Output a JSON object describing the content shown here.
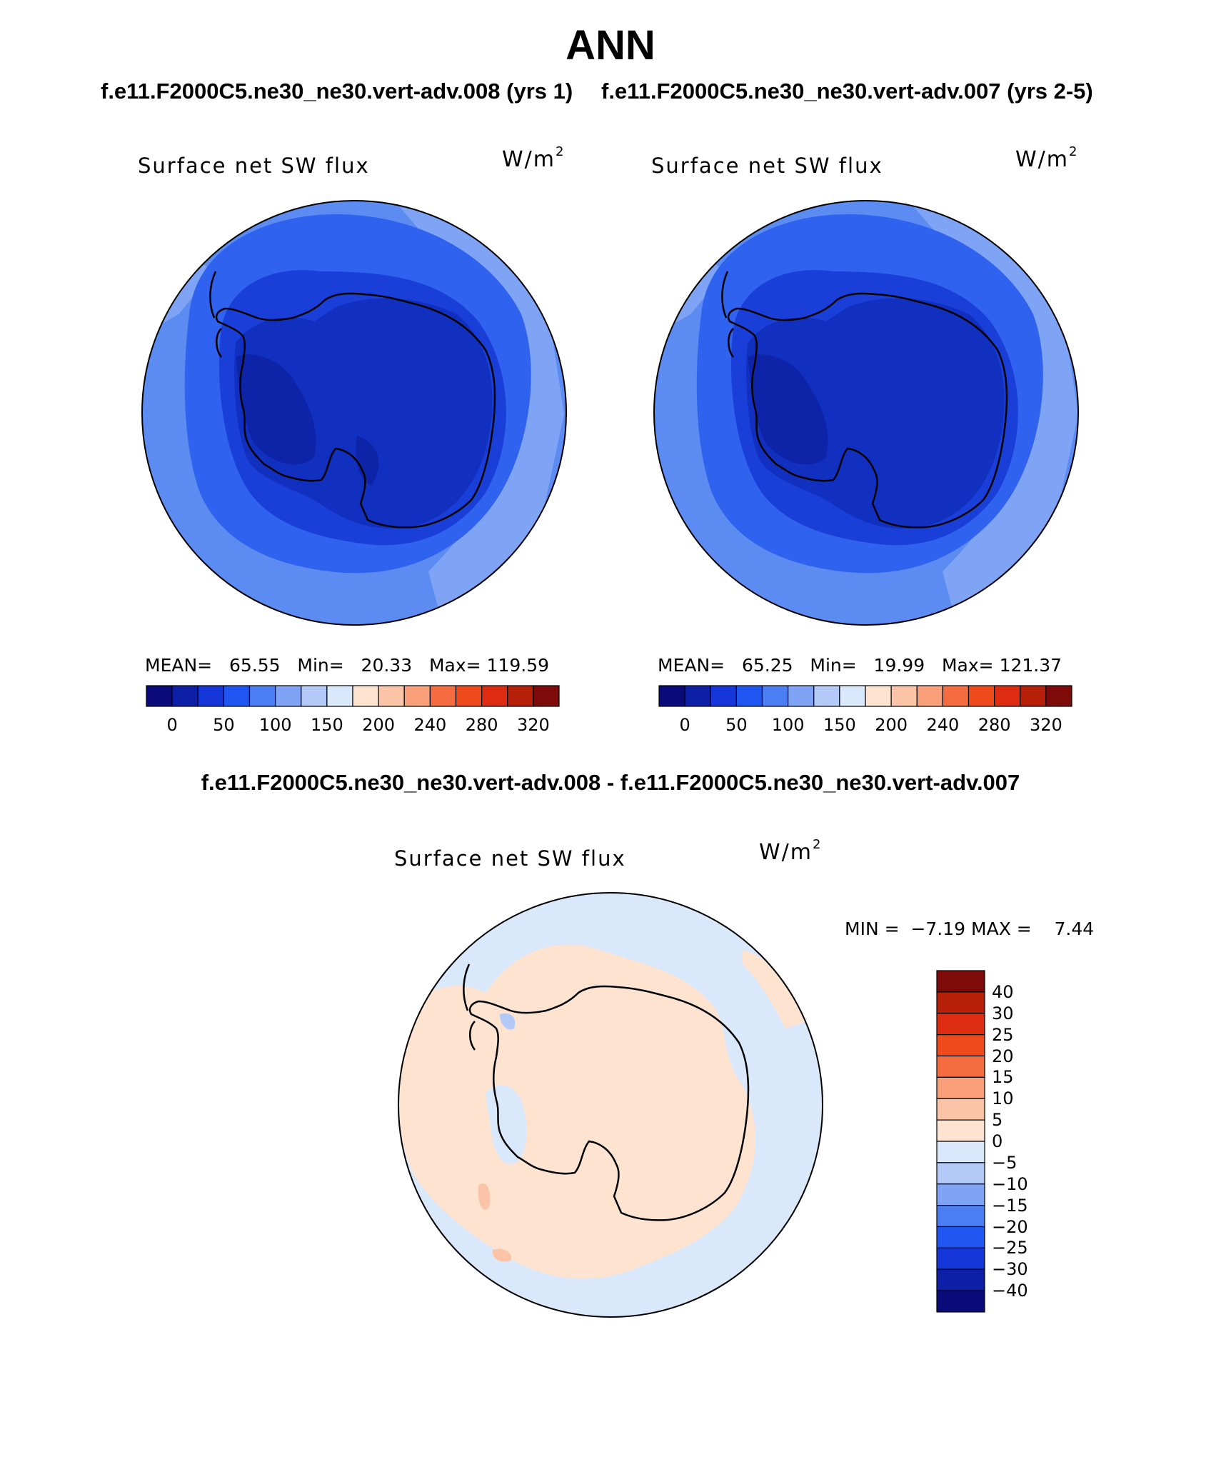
{
  "figure": {
    "title": "ANN",
    "case1_title": "f.e11.F2000C5.ne30_ne30.vert-adv.008 (yrs 1)",
    "case2_title": "f.e11.F2000C5.ne30_ne30.vert-adv.007 (yrs 2-5)",
    "diff_title": "f.e11.F2000C5.ne30_ne30.vert-adv.008 - f.e11.F2000C5.ne30_ne30.vert-adv.007"
  },
  "panels": [
    {
      "variable": "Surface net SW flux",
      "units_base": "W/m",
      "units_exp": "2",
      "mean_label": "MEAN=",
      "mean": "65.55",
      "min_label": "Min=",
      "min": "20.33",
      "max_label": "Max=",
      "max": "119.59"
    },
    {
      "variable": "Surface net SW flux",
      "units_base": "W/m",
      "units_exp": "2",
      "mean_label": "MEAN=",
      "mean": "65.25",
      "min_label": "Min=",
      "min": "19.99",
      "max_label": "Max=",
      "max": "121.37"
    }
  ],
  "diff_panel": {
    "variable": "Surface net SW flux",
    "units_base": "W/m",
    "units_exp": "2",
    "min_label": "MIN =",
    "min": "−7.19",
    "max_label": "MAX =",
    "max": "7.44"
  },
  "colorbar_main": {
    "colors": [
      "#0a0a7a",
      "#0d1fa6",
      "#1536d9",
      "#1f55f0",
      "#4a7ef2",
      "#7fa4f5",
      "#b3c9f8",
      "#d9e8fb",
      "#fde3d0",
      "#fcc4a6",
      "#f9a07a",
      "#f46c3f",
      "#ef4a1c",
      "#de2c10",
      "#b61f08",
      "#7f0a0a"
    ],
    "ticks": [
      "0",
      "50",
      "100",
      "150",
      "200",
      "240",
      "280",
      "320"
    ]
  },
  "colorbar_diff": {
    "colors": [
      "#0a0a7a",
      "#0d1fa6",
      "#1536d9",
      "#1f55f0",
      "#4a7ef2",
      "#7fa4f5",
      "#b3c9f8",
      "#d9e8fb",
      "#fde3d0",
      "#fcc4a6",
      "#f9a07a",
      "#f46c3f",
      "#ef4a1c",
      "#de2c10",
      "#b61f08",
      "#7f0a0a"
    ],
    "ticks": [
      "40",
      "30",
      "25",
      "20",
      "15",
      "10",
      "5",
      "0",
      "−5",
      "−10",
      "−15",
      "−20",
      "−25",
      "−30",
      "−40"
    ]
  },
  "map_colors": {
    "outer": "#5c8cf2",
    "outer_light": "#7fa4f5",
    "mid": "#2f62ee",
    "inner": "#1a3fd9",
    "antarctic": "#1230c0",
    "darkest": "#0e24a8",
    "diff_blue": "#d9e8fb",
    "diff_orange": "#fde3d0",
    "diff_blue2": "#b3c9f8",
    "diff_orange2": "#fcc4a6"
  }
}
